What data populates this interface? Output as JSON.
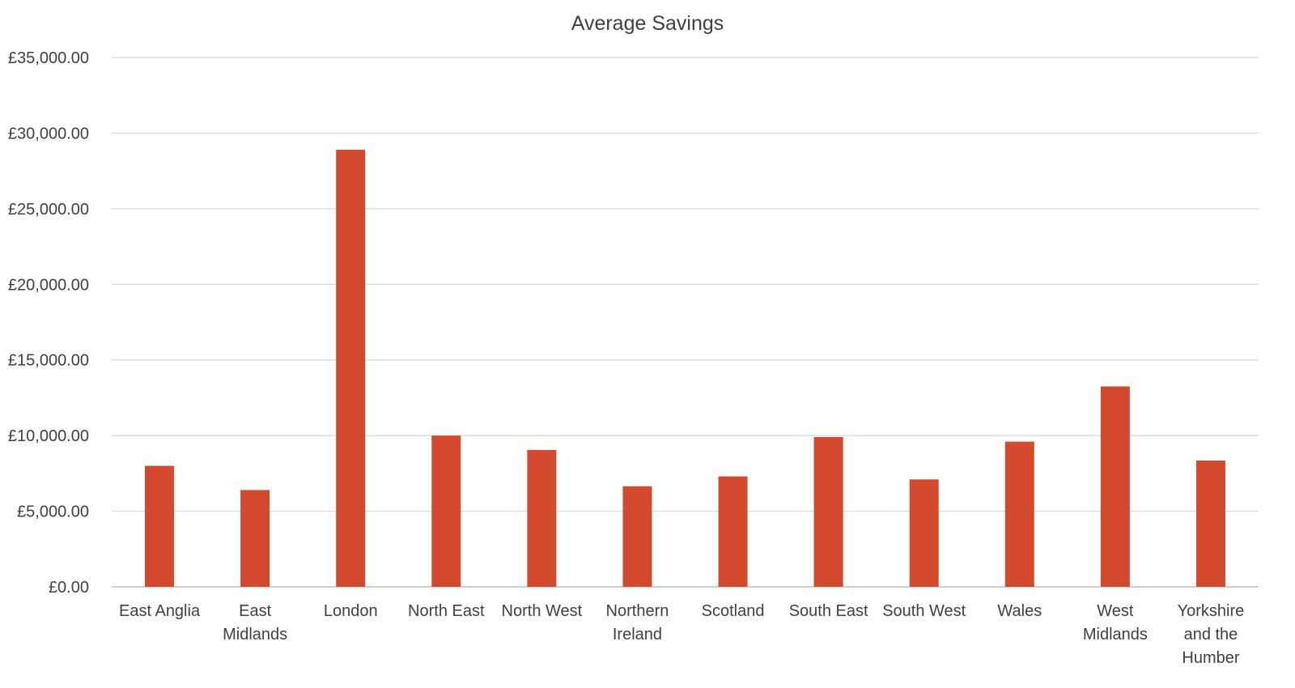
{
  "chart_data": {
    "type": "bar",
    "title": "Average Savings",
    "xlabel": "",
    "ylabel": "",
    "categories": [
      "East Anglia",
      "East Midlands",
      "London",
      "North East",
      "North West",
      "Northern Ireland",
      "Scotland",
      "South East",
      "South West",
      "Wales",
      "West Midlands",
      "Yorkshire and the Humber"
    ],
    "values": [
      8000,
      6400,
      28900,
      10000,
      9050,
      6650,
      7300,
      9900,
      7100,
      9600,
      13250,
      8350
    ],
    "ylim": [
      0,
      35000
    ],
    "y_ticks": [
      0,
      5000,
      10000,
      15000,
      20000,
      25000,
      30000,
      35000
    ],
    "y_tick_labels": [
      "£0.00",
      "£5,000.00",
      "£10,000.00",
      "£15,000.00",
      "£20,000.00",
      "£25,000.00",
      "£30,000.00",
      "£35,000.00"
    ],
    "grid": true,
    "legend": "none",
    "bar_color": "#d34a2e"
  }
}
